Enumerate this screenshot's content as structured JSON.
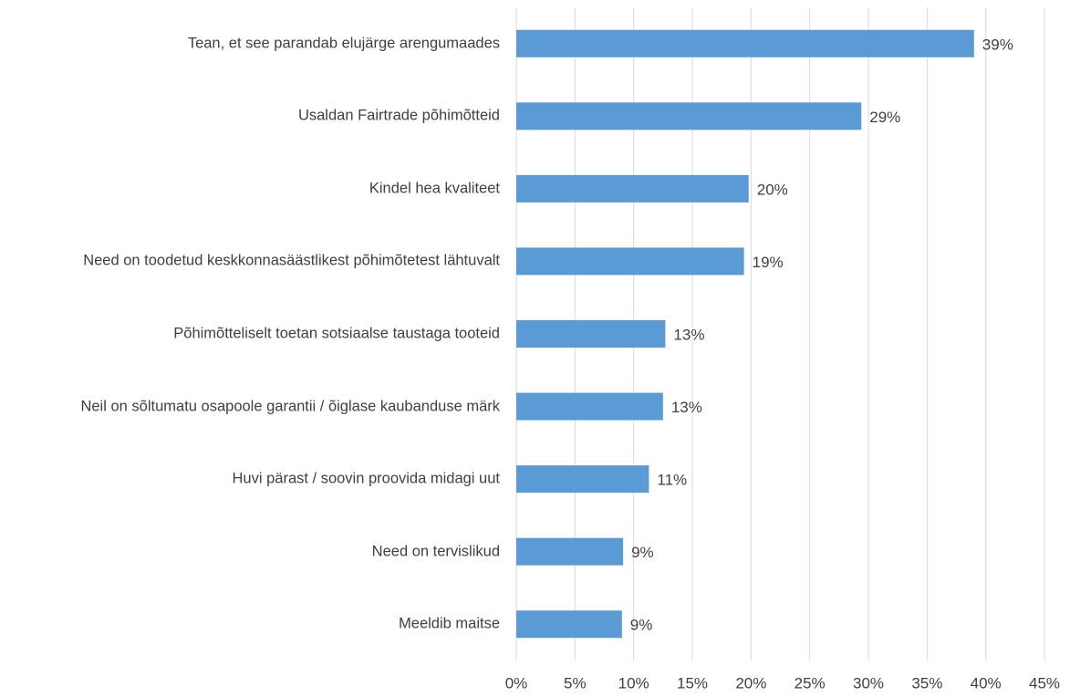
{
  "chart_data": {
    "type": "barh",
    "categories": [
      "Tean, et see parandab elujärge arengumaades",
      "Usaldan Fairtrade põhimõtteid",
      "Kindel hea kvaliteet",
      "Need on toodetud keskkonnasäästlikest põhimõtetest lähtuvalt",
      "Põhimõtteliselt toetan sotsiaalse taustaga tooteid",
      "Neil on sõltumatu osapoole garantii / õiglase kaubanduse märk",
      "Huvi pärast / soovin proovida midagi uut",
      "Need on tervislikud",
      "Meeldib maitse"
    ],
    "values": [
      39,
      29.4,
      19.8,
      19.4,
      12.7,
      12.5,
      11.3,
      9.1,
      9.0
    ],
    "value_labels": [
      "39%",
      "29%",
      "20%",
      "19%",
      "13%",
      "13%",
      "11%",
      "9%",
      "9%"
    ],
    "color": "#5b9bd5",
    "xlim": [
      0,
      45
    ],
    "xticks": [
      {
        "value": 0,
        "label": "0%"
      },
      {
        "value": 5,
        "label": "5%"
      },
      {
        "value": 10,
        "label": "10%"
      },
      {
        "value": 15,
        "label": "15%"
      },
      {
        "value": 20,
        "label": "20%"
      },
      {
        "value": 25,
        "label": "25%"
      },
      {
        "value": 30,
        "label": "30%"
      },
      {
        "value": 35,
        "label": "35%"
      },
      {
        "value": 40,
        "label": "40%"
      },
      {
        "value": 45,
        "label": "45%"
      }
    ],
    "grid": true
  }
}
